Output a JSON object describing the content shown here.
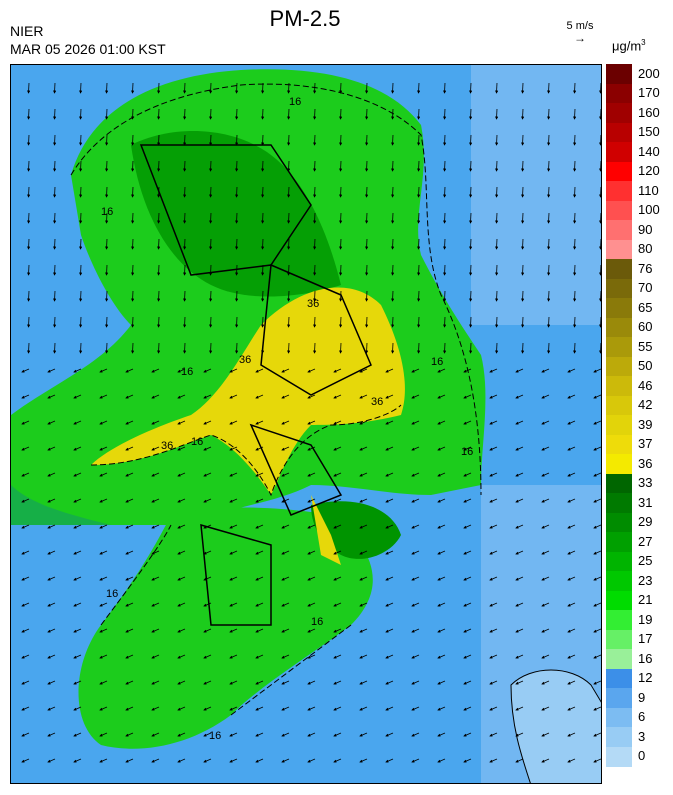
{
  "header": {
    "agency": "NIER",
    "datetime": "MAR 05 2026 01:00 KST",
    "title": "PM-2.5",
    "wind_scale": "5 m/s",
    "unit": "μg/m",
    "unit_sup": "3"
  },
  "legend": {
    "bins": [
      {
        "label": "200",
        "color": "#6b0000"
      },
      {
        "label": "170",
        "color": "#8b0000"
      },
      {
        "label": "160",
        "color": "#a00000"
      },
      {
        "label": "150",
        "color": "#b80000"
      },
      {
        "label": "140",
        "color": "#d00000"
      },
      {
        "label": "120",
        "color": "#ff0000"
      },
      {
        "label": "110",
        "color": "#ff3030"
      },
      {
        "label": "100",
        "color": "#ff5050"
      },
      {
        "label": "90",
        "color": "#ff7070"
      },
      {
        "label": "80",
        "color": "#ff9090"
      },
      {
        "label": "76",
        "color": "#6b5a0a"
      },
      {
        "label": "70",
        "color": "#7a6a0a"
      },
      {
        "label": "65",
        "color": "#8a7a0a"
      },
      {
        "label": "60",
        "color": "#9a8a0a"
      },
      {
        "label": "55",
        "color": "#aa9a0a"
      },
      {
        "label": "50",
        "color": "#bcaa0a"
      },
      {
        "label": "46",
        "color": "#ccba0a"
      },
      {
        "label": "42",
        "color": "#d8c80a"
      },
      {
        "label": "39",
        "color": "#e2d40a"
      },
      {
        "label": "37",
        "color": "#eedc0a"
      },
      {
        "label": "36",
        "color": "#f4ea00"
      },
      {
        "label": "33",
        "color": "#006600"
      },
      {
        "label": "31",
        "color": "#007a00"
      },
      {
        "label": "29",
        "color": "#008c00"
      },
      {
        "label": "27",
        "color": "#00a000"
      },
      {
        "label": "25",
        "color": "#00b400"
      },
      {
        "label": "23",
        "color": "#00c800"
      },
      {
        "label": "21",
        "color": "#00dc00"
      },
      {
        "label": "19",
        "color": "#33ee33"
      },
      {
        "label": "17",
        "color": "#66f066"
      },
      {
        "label": "16",
        "color": "#99f099"
      },
      {
        "label": "12",
        "color": "#3c8fe8"
      },
      {
        "label": "9",
        "color": "#5aa6ee"
      },
      {
        "label": "6",
        "color": "#7cbcf2"
      },
      {
        "label": "3",
        "color": "#98ccf4"
      },
      {
        "label": "0",
        "color": "#b4daf6"
      }
    ]
  },
  "contours": {
    "labels": [
      "16",
      "16",
      "16",
      "16",
      "16",
      "16",
      "16",
      "36",
      "36",
      "36",
      "36",
      "16",
      "16"
    ]
  }
}
